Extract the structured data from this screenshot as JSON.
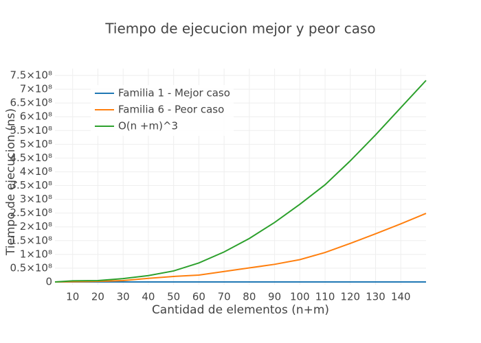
{
  "chart_data": {
    "type": "line",
    "title": "Tiempo de ejecucion mejor y peor caso",
    "x_label": "Cantidad de elementos (n+m)",
    "y_label": "Tiempo de ejecucion (ns)",
    "x": [
      3,
      10,
      20,
      30,
      40,
      50,
      60,
      70,
      80,
      90,
      100,
      110,
      120,
      130,
      140,
      150
    ],
    "series": [
      {
        "name": "Familia 1 - Mejor caso",
        "color": "#1f77b4",
        "values": [
          0,
          0,
          0,
          0,
          0,
          0,
          0,
          0,
          0,
          0,
          0,
          0,
          0,
          0,
          0,
          0
        ]
      },
      {
        "name": "Familia 6 - Peor caso",
        "color": "#ff7f0e",
        "values": [
          0,
          1000000,
          2000000,
          5000000,
          13000000,
          20000000,
          25000000,
          38000000,
          51000000,
          64000000,
          81000000,
          107000000,
          140000000,
          175000000,
          211000000,
          249000000
        ]
      },
      {
        "name": "O(n +m)^3",
        "color": "#2ca02c",
        "values": [
          0,
          4000000,
          5000000,
          12000000,
          23000000,
          40000000,
          69000000,
          109000000,
          158000000,
          216000000,
          282000000,
          353000000,
          440000000,
          534000000,
          633000000,
          732000000
        ]
      }
    ],
    "xlim": [
      3,
      150
    ],
    "ylim": [
      -10000000,
      775000000
    ],
    "xticks": [
      10,
      20,
      30,
      40,
      50,
      60,
      70,
      80,
      90,
      100,
      110,
      120,
      130,
      140
    ],
    "yticks": [
      0,
      {
        "value": 50000000,
        "label": "0.5×10⁸"
      },
      {
        "value": 100000000,
        "label": "1×10⁸"
      },
      {
        "value": 150000000,
        "label": "1.5×10⁸"
      },
      {
        "value": 200000000,
        "label": "2×10⁸"
      },
      {
        "value": 250000000,
        "label": "2.5×10⁸"
      },
      {
        "value": 300000000,
        "label": "3×10⁸"
      },
      {
        "value": 350000000,
        "label": "3.5×10⁸"
      },
      {
        "value": 400000000,
        "label": "4×10⁸"
      },
      {
        "value": 450000000,
        "label": "4.5×10⁸"
      },
      {
        "value": 500000000,
        "label": "5×10⁸"
      },
      {
        "value": 550000000,
        "label": "5.5×10⁸"
      },
      {
        "value": 600000000,
        "label": "6×10⁸"
      },
      {
        "value": 650000000,
        "label": "6.5×10⁸"
      },
      {
        "value": 700000000,
        "label": "7×10⁸"
      },
      {
        "value": 750000000,
        "label": "7.5×10⁸"
      }
    ],
    "grid": true,
    "legend": "top-left"
  }
}
